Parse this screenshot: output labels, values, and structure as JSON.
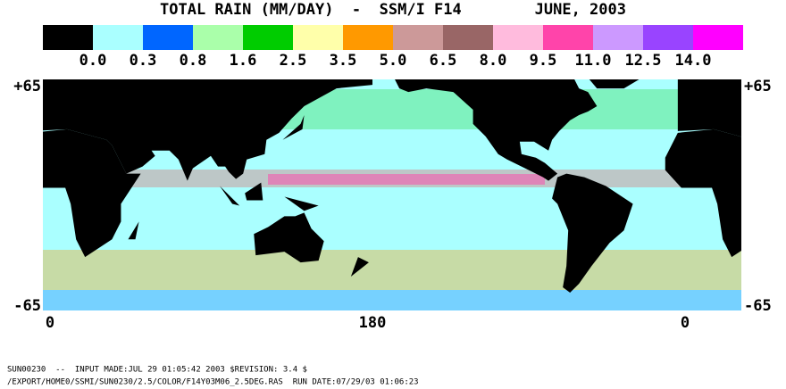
{
  "header": {
    "title": "TOTAL RAIN (MM/DAY)  -  SSM/I F14        JUNE, 2003"
  },
  "legend": {
    "colors": [
      "#000000",
      "#aaffff",
      "#0066ff",
      "#aaffaa",
      "#00cc00",
      "#ffffaa",
      "#ff9900",
      "#cc9999",
      "#996666",
      "#ffbbdd",
      "#ff44aa",
      "#cc99ff",
      "#9944ff",
      "#ff00ff"
    ],
    "labels": [
      "0.0",
      "0.3",
      "0.8",
      "1.6",
      "2.5",
      "3.5",
      "5.0",
      "6.5",
      "8.0",
      "9.5",
      "11.0",
      "12.5",
      "14.0"
    ]
  },
  "axes": {
    "left_labels": [
      "+65",
      "-65"
    ],
    "right_labels": [
      "+65",
      "-65"
    ],
    "bottom_labels": [
      "0",
      "180",
      "0"
    ]
  },
  "footer": {
    "lines": [
      "SUN00230  --  INPUT MADE:JUL 29 01:05:42 2003 $REVISION: 3.4 $",
      "/EXPORT/HOME0/SSMI/SUN0230/2.5/COLOR/F14Y03M06_2.5DEG.RAS  RUN DATE:07/29/03 01:06:23"
    ]
  }
}
